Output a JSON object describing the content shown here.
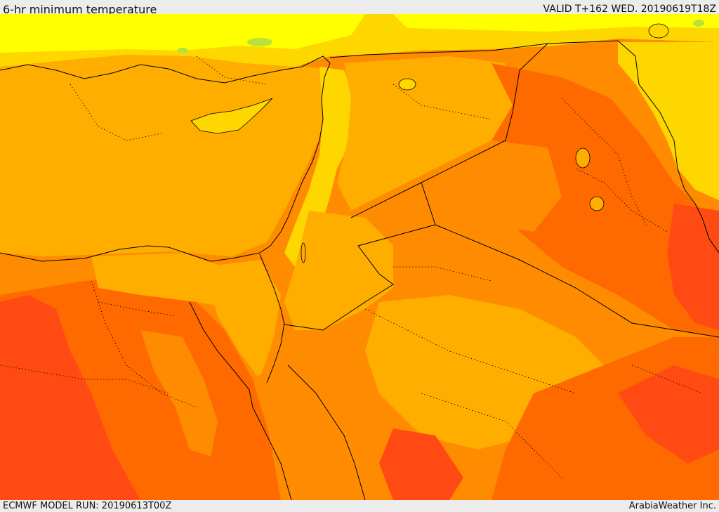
{
  "header": {
    "title": "6-hr minimum temperature",
    "valid": "VALID T+162 WED. 20190619T18Z"
  },
  "footer": {
    "model_run": "ECMWF MODEL RUN: 20190613T00Z",
    "credit": "ArabiaWeather Inc."
  },
  "map": {
    "field": "temperature",
    "colors": {
      "light_green": "#b6e23a",
      "yellow": "#ffff00",
      "yellow_orange": "#ffd700",
      "light_orange": "#ffae00",
      "orange": "#ff8c00",
      "dark_orange": "#ff6a00",
      "red_orange": "#ff4a14"
    }
  }
}
